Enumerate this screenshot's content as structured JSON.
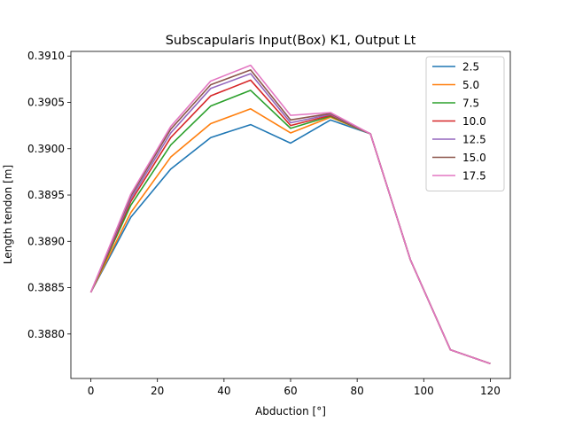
{
  "chart_data": {
    "type": "line",
    "title": "Subscapularis Input(Box) K1, Output Lt",
    "xlabel": "Abduction [°]",
    "ylabel": "Length tendon [m]",
    "xlim": [
      -6,
      126
    ],
    "ylim": [
      0.38752,
      0.39105
    ],
    "xticks": [
      0,
      20,
      40,
      60,
      80,
      100,
      120
    ],
    "xtick_labels": [
      "0",
      "20",
      "40",
      "60",
      "80",
      "100",
      "120"
    ],
    "yticks": [
      0.388,
      0.3885,
      0.389,
      0.3895,
      0.39,
      0.3905,
      0.391
    ],
    "ytick_labels": [
      "0.3880",
      "0.3885",
      "0.3890",
      "0.3895",
      "0.3900",
      "0.3905",
      "0.3910"
    ],
    "grid": false,
    "legend_position": "top-right",
    "x": [
      0,
      12,
      24,
      36,
      48,
      60,
      72,
      84,
      96,
      108,
      120
    ],
    "series": [
      {
        "name": "2.5",
        "color": "#1f77b4",
        "values": [
          0.38845,
          0.38926,
          0.38978,
          0.39012,
          0.39026,
          0.39006,
          0.39031,
          0.39016,
          0.3888,
          0.38783,
          0.38768
        ]
      },
      {
        "name": "5.0",
        "color": "#ff7f0e",
        "values": [
          0.38845,
          0.38931,
          0.38991,
          0.39027,
          0.39043,
          0.39017,
          0.39034,
          0.39016,
          0.3888,
          0.38783,
          0.38768
        ]
      },
      {
        "name": "7.5",
        "color": "#2ca02c",
        "values": [
          0.38845,
          0.38939,
          0.39004,
          0.39046,
          0.39063,
          0.39022,
          0.39035,
          0.39016,
          0.3888,
          0.38783,
          0.38768
        ]
      },
      {
        "name": "10.0",
        "color": "#d62728",
        "values": [
          0.38845,
          0.38943,
          0.39012,
          0.39057,
          0.39074,
          0.39025,
          0.39036,
          0.39016,
          0.3888,
          0.38783,
          0.38768
        ]
      },
      {
        "name": "12.5",
        "color": "#9467bd",
        "values": [
          0.38845,
          0.38946,
          0.39017,
          0.39065,
          0.39081,
          0.39028,
          0.39037,
          0.39016,
          0.3888,
          0.38783,
          0.38768
        ]
      },
      {
        "name": "15.0",
        "color": "#8c564b",
        "values": [
          0.38845,
          0.38949,
          0.39021,
          0.39069,
          0.39085,
          0.39031,
          0.39038,
          0.39016,
          0.3888,
          0.38783,
          0.38768
        ]
      },
      {
        "name": "17.5",
        "color": "#e377c2",
        "values": [
          0.38845,
          0.38951,
          0.39024,
          0.39073,
          0.3909,
          0.39036,
          0.39039,
          0.39016,
          0.3888,
          0.38783,
          0.38768
        ]
      }
    ]
  }
}
